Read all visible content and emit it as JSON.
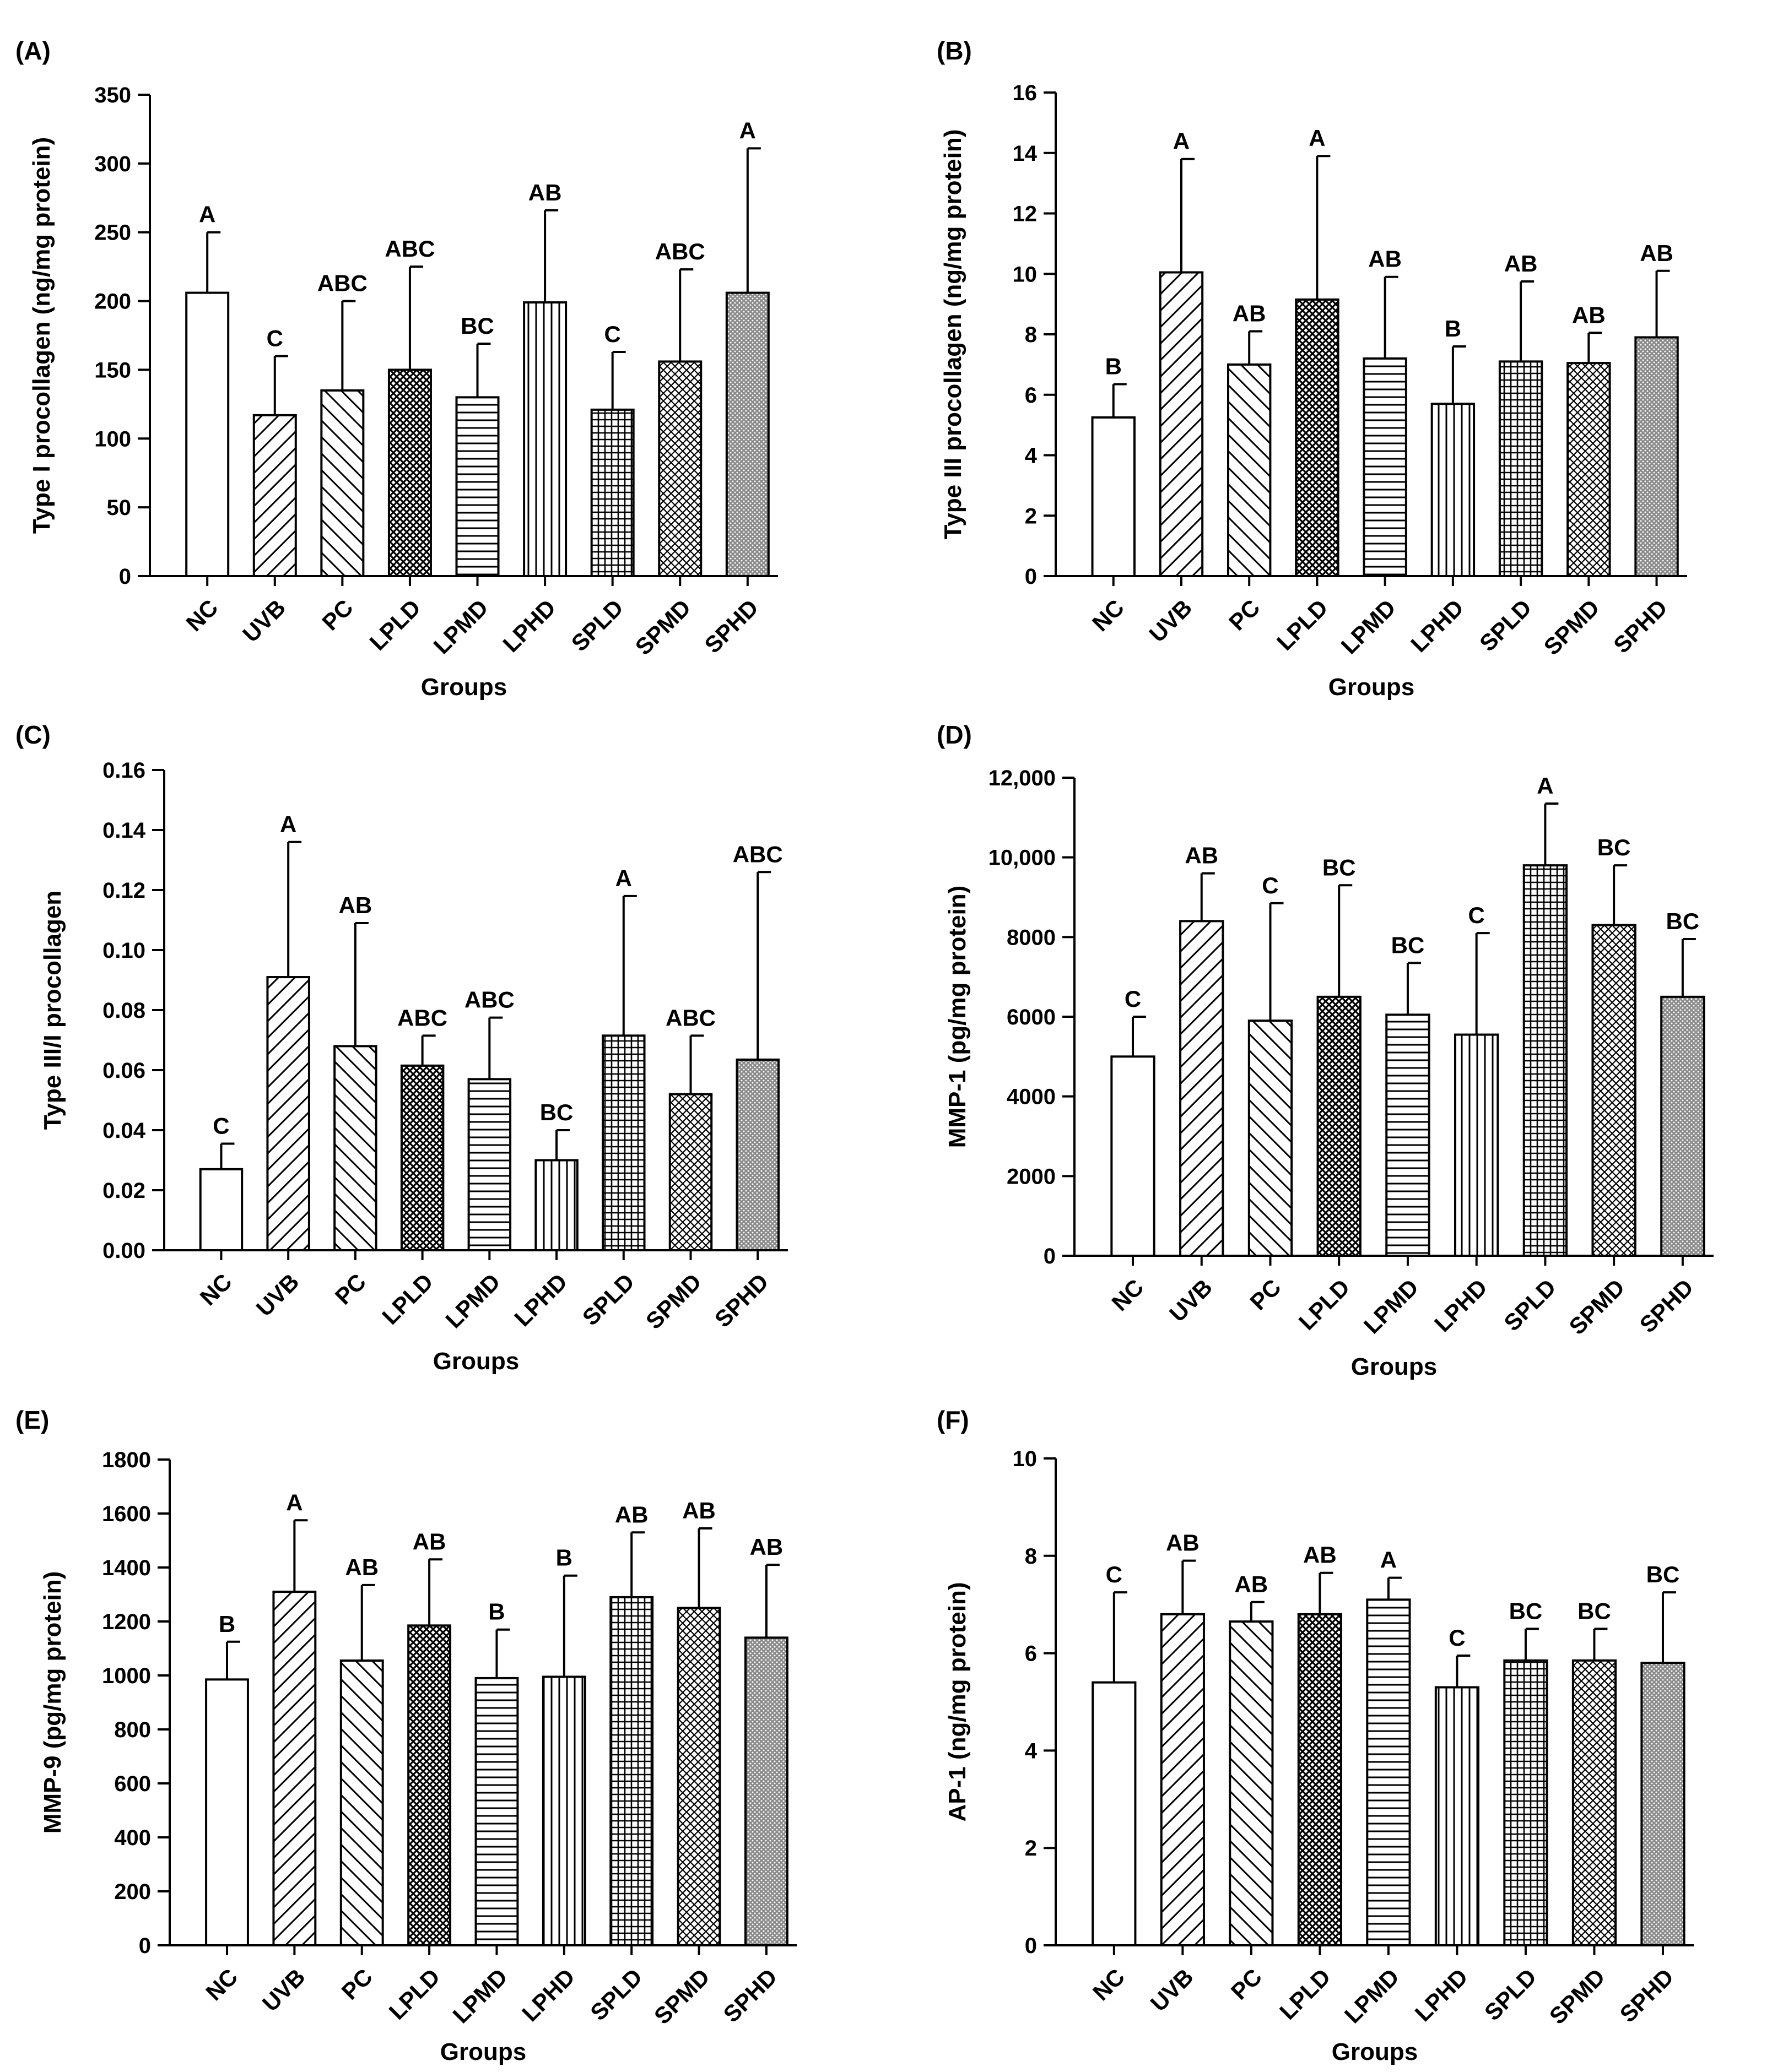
{
  "chart_data": [
    {
      "type": "bar",
      "panel": "(A)",
      "ylabel": "Type I procollagen  (ng/mg protein)",
      "xlabel": "Groups",
      "ylim": [
        0,
        350
      ],
      "yticks": [
        0,
        50,
        100,
        150,
        200,
        250,
        300,
        350
      ],
      "ytick_labels": [
        "0",
        "50",
        "100",
        "150",
        "200",
        "250",
        "300",
        "350"
      ],
      "categories": [
        "NC",
        "UVB",
        "PC",
        "LPLD",
        "LPMD",
        "LPHD",
        "SPLD",
        "SPMD",
        "SPHD"
      ],
      "values": [
        206,
        117,
        135,
        150,
        130,
        199,
        121,
        156,
        206
      ],
      "error_tops": [
        250,
        160,
        200,
        225,
        169,
        266,
        163,
        223,
        311
      ],
      "significance": [
        "A",
        "C",
        "ABC",
        "ABC",
        "BC",
        "AB",
        "C",
        "ABC",
        "A"
      ]
    },
    {
      "type": "bar",
      "panel": "(B)",
      "ylabel": "Type III procollagen  (ng/mg protein)",
      "xlabel": "Groups",
      "ylim": [
        0,
        16
      ],
      "yticks": [
        0,
        2,
        4,
        6,
        8,
        10,
        12,
        14,
        16
      ],
      "ytick_labels": [
        "0",
        "2",
        "4",
        "6",
        "8",
        "10",
        "12",
        "14",
        "16"
      ],
      "categories": [
        "NC",
        "UVB",
        "PC",
        "LPLD",
        "LPMD",
        "LPHD",
        "SPLD",
        "SPMD",
        "SPHD"
      ],
      "values": [
        5.25,
        10.05,
        7.0,
        9.15,
        7.2,
        5.7,
        7.1,
        7.05,
        7.9
      ],
      "error_tops": [
        6.35,
        13.8,
        8.1,
        13.9,
        9.9,
        7.6,
        9.75,
        8.05,
        10.1
      ],
      "significance": [
        "B",
        "A",
        "AB",
        "A",
        "AB",
        "B",
        "AB",
        "AB",
        "AB"
      ]
    },
    {
      "type": "bar",
      "panel": "(C)",
      "ylabel": "Type III/I procollagen",
      "xlabel": "Groups",
      "ylim": [
        0,
        0.16
      ],
      "yticks": [
        0,
        0.02,
        0.04,
        0.06,
        0.08,
        0.1,
        0.12,
        0.14,
        0.16
      ],
      "ytick_labels": [
        "0.00",
        "0.02",
        "0.04",
        "0.06",
        "0.08",
        "0.10",
        "0.12",
        "0.14",
        "0.16"
      ],
      "categories": [
        "NC",
        "UVB",
        "PC",
        "LPLD",
        "LPMD",
        "LPHD",
        "SPLD",
        "SPMD",
        "SPHD"
      ],
      "values": [
        0.027,
        0.091,
        0.068,
        0.0615,
        0.057,
        0.03,
        0.0715,
        0.052,
        0.0635
      ],
      "error_tops": [
        0.0355,
        0.136,
        0.109,
        0.0715,
        0.0775,
        0.04,
        0.118,
        0.0715,
        0.126
      ],
      "significance": [
        "C",
        "A",
        "AB",
        "ABC",
        "ABC",
        "BC",
        "A",
        "ABC",
        "ABC"
      ]
    },
    {
      "type": "bar",
      "panel": "(D)",
      "ylabel": "MMP-1 (pg/mg protein)",
      "xlabel": "Groups",
      "ylim": [
        0,
        12000
      ],
      "yticks": [
        0,
        2000,
        4000,
        6000,
        8000,
        10000,
        12000
      ],
      "ytick_labels": [
        "0",
        "2000",
        "4000",
        "6000",
        "8000",
        "10,000",
        "12,000"
      ],
      "categories": [
        "NC",
        "UVB",
        "PC",
        "LPLD",
        "LPMD",
        "LPHD",
        "SPLD",
        "SPMD",
        "SPHD"
      ],
      "values": [
        5000,
        8400,
        5900,
        6500,
        6050,
        5550,
        9800,
        8300,
        6500
      ],
      "error_tops": [
        6000,
        9600,
        8850,
        9300,
        7350,
        8100,
        11350,
        9800,
        7950
      ],
      "significance": [
        "C",
        "AB",
        "C",
        "BC",
        "BC",
        "C",
        "A",
        "BC",
        "BC"
      ]
    },
    {
      "type": "bar",
      "panel": "(E)",
      "ylabel": "MMP-9 (pg/mg protein)",
      "xlabel": "Groups",
      "ylim": [
        0,
        1800
      ],
      "yticks": [
        0,
        200,
        400,
        600,
        800,
        1000,
        1200,
        1400,
        1600,
        1800
      ],
      "ytick_labels": [
        "0",
        "200",
        "400",
        "600",
        "800",
        "1000",
        "1200",
        "1400",
        "1600",
        "1800"
      ],
      "categories": [
        "NC",
        "UVB",
        "PC",
        "LPLD",
        "LPMD",
        "LPHD",
        "SPLD",
        "SPMD",
        "SPHD"
      ],
      "values": [
        985,
        1310,
        1055,
        1185,
        990,
        995,
        1290,
        1250,
        1140
      ],
      "error_tops": [
        1125,
        1575,
        1335,
        1430,
        1170,
        1370,
        1530,
        1545,
        1410
      ],
      "significance": [
        "B",
        "A",
        "AB",
        "AB",
        "B",
        "B",
        "AB",
        "AB",
        "AB"
      ]
    },
    {
      "type": "bar",
      "panel": "(F)",
      "ylabel": "AP-1 (ng/mg protein)",
      "xlabel": "Groups",
      "ylim": [
        0,
        10
      ],
      "yticks": [
        0,
        2,
        4,
        6,
        8,
        10
      ],
      "ytick_labels": [
        "0",
        "2",
        "4",
        "6",
        "8",
        "10"
      ],
      "categories": [
        "NC",
        "UVB",
        "PC",
        "LPLD",
        "LPMD",
        "LPHD",
        "SPLD",
        "SPMD",
        "SPHD"
      ],
      "values": [
        5.4,
        6.8,
        6.65,
        6.8,
        7.1,
        5.3,
        5.85,
        5.85,
        5.8
      ],
      "error_tops": [
        7.25,
        7.9,
        7.05,
        7.65,
        7.55,
        5.95,
        6.5,
        6.5,
        7.25
      ],
      "significance": [
        "C",
        "AB",
        "AB",
        "AB",
        "A",
        "C",
        "BC",
        "BC",
        "BC"
      ]
    }
  ]
}
